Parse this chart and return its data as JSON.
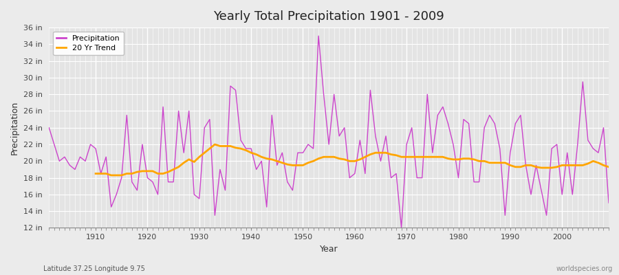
{
  "title": "Yearly Total Precipitation 1901 - 2009",
  "xlabel": "Year",
  "ylabel": "Precipitation",
  "subtitle": "Latitude 37.25 Longitude 9.75",
  "watermark": "worldspecies.org",
  "legend_labels": [
    "Precipitation",
    "20 Yr Trend"
  ],
  "precip_color": "#CC44CC",
  "trend_color": "#FFA500",
  "bg_color": "#EBEBEB",
  "plot_bg_color": "#E4E4E4",
  "ylim": [
    12,
    36
  ],
  "yticks": [
    12,
    14,
    16,
    18,
    20,
    22,
    24,
    26,
    28,
    30,
    32,
    34,
    36
  ],
  "xlim": [
    1901,
    2009
  ],
  "xticks": [
    1910,
    1920,
    1930,
    1940,
    1950,
    1960,
    1970,
    1980,
    1990,
    2000
  ],
  "years": [
    1901,
    1902,
    1903,
    1904,
    1905,
    1906,
    1907,
    1908,
    1909,
    1910,
    1911,
    1912,
    1913,
    1914,
    1915,
    1916,
    1917,
    1918,
    1919,
    1920,
    1921,
    1922,
    1923,
    1924,
    1925,
    1926,
    1927,
    1928,
    1929,
    1930,
    1931,
    1932,
    1933,
    1934,
    1935,
    1936,
    1937,
    1938,
    1939,
    1940,
    1941,
    1942,
    1943,
    1944,
    1945,
    1946,
    1947,
    1948,
    1949,
    1950,
    1951,
    1952,
    1953,
    1954,
    1955,
    1956,
    1957,
    1958,
    1959,
    1960,
    1961,
    1962,
    1963,
    1964,
    1965,
    1966,
    1967,
    1968,
    1969,
    1970,
    1971,
    1972,
    1973,
    1974,
    1975,
    1976,
    1977,
    1978,
    1979,
    1980,
    1981,
    1982,
    1983,
    1984,
    1985,
    1986,
    1987,
    1988,
    1989,
    1990,
    1991,
    1992,
    1993,
    1994,
    1995,
    1996,
    1997,
    1998,
    1999,
    2000,
    2001,
    2002,
    2003,
    2004,
    2005,
    2006,
    2007,
    2008,
    2009
  ],
  "precip": [
    24.0,
    22.0,
    20.0,
    20.5,
    19.5,
    19.0,
    20.5,
    20.0,
    22.0,
    21.5,
    18.5,
    20.5,
    14.5,
    16.0,
    18.0,
    25.5,
    17.5,
    16.5,
    22.0,
    18.0,
    17.5,
    16.0,
    26.5,
    17.5,
    17.5,
    26.0,
    21.0,
    26.0,
    16.0,
    15.5,
    24.0,
    25.0,
    13.5,
    19.0,
    16.5,
    29.0,
    28.5,
    22.5,
    21.5,
    21.5,
    19.0,
    20.0,
    14.5,
    25.5,
    19.5,
    21.0,
    17.5,
    16.5,
    21.0,
    21.0,
    22.0,
    21.5,
    35.0,
    28.0,
    22.0,
    28.0,
    23.0,
    24.0,
    18.0,
    18.5,
    22.5,
    18.5,
    28.5,
    23.0,
    20.0,
    23.0,
    18.0,
    18.5,
    12.0,
    22.0,
    24.0,
    18.0,
    18.0,
    28.0,
    21.0,
    25.5,
    26.5,
    24.5,
    22.0,
    18.0,
    25.0,
    24.5,
    17.5,
    17.5,
    24.0,
    25.5,
    24.5,
    21.5,
    13.5,
    21.0,
    24.5,
    25.5,
    19.5,
    16.0,
    19.5,
    16.5,
    13.5,
    21.5,
    22.0,
    16.0,
    21.0,
    16.0,
    22.0,
    29.5,
    22.5,
    21.5,
    21.0,
    24.0,
    15.0
  ],
  "trend_years": [
    1910,
    1911,
    1912,
    1913,
    1914,
    1915,
    1916,
    1917,
    1918,
    1919,
    1920,
    1921,
    1922,
    1923,
    1924,
    1925,
    1926,
    1927,
    1928,
    1929,
    1930,
    1931,
    1932,
    1933,
    1934,
    1935,
    1936,
    1937,
    1938,
    1939,
    1940,
    1941,
    1942,
    1943,
    1944,
    1945,
    1946,
    1947,
    1948,
    1949,
    1950,
    1951,
    1952,
    1953,
    1954,
    1955,
    1956,
    1957,
    1958,
    1959,
    1960,
    1961,
    1962,
    1963,
    1964,
    1965,
    1966,
    1967,
    1968,
    1969,
    1970,
    1971,
    1972,
    1973,
    1974,
    1975,
    1976,
    1977,
    1978,
    1979,
    1980,
    1981,
    1982,
    1983,
    1984,
    1985,
    1986,
    1987,
    1988,
    1989,
    1990,
    1991,
    1992,
    1993,
    1994,
    1995,
    1996,
    1997,
    1998,
    1999,
    2000,
    2001,
    2002,
    2003,
    2004,
    2005,
    2006,
    2007,
    2008,
    2009
  ],
  "trend": [
    18.5,
    18.5,
    18.5,
    18.3,
    18.3,
    18.3,
    18.5,
    18.5,
    18.7,
    18.8,
    18.8,
    18.8,
    18.5,
    18.5,
    18.7,
    19.0,
    19.3,
    19.8,
    20.2,
    19.9,
    20.5,
    21.0,
    21.5,
    22.0,
    21.8,
    21.8,
    21.8,
    21.6,
    21.5,
    21.3,
    21.0,
    20.8,
    20.5,
    20.3,
    20.2,
    20.0,
    19.8,
    19.6,
    19.5,
    19.5,
    19.5,
    19.8,
    20.0,
    20.3,
    20.5,
    20.5,
    20.5,
    20.3,
    20.2,
    20.0,
    20.0,
    20.2,
    20.5,
    20.8,
    21.0,
    21.0,
    21.0,
    20.8,
    20.7,
    20.5,
    20.5,
    20.5,
    20.5,
    20.5,
    20.5,
    20.5,
    20.5,
    20.5,
    20.3,
    20.2,
    20.2,
    20.3,
    20.3,
    20.2,
    20.0,
    20.0,
    19.8,
    19.8,
    19.8,
    19.8,
    19.5,
    19.3,
    19.3,
    19.5,
    19.5,
    19.3,
    19.2,
    19.2,
    19.2,
    19.3,
    19.5,
    19.5,
    19.5,
    19.5,
    19.5,
    19.7,
    20.0,
    19.8,
    19.5,
    19.3
  ]
}
